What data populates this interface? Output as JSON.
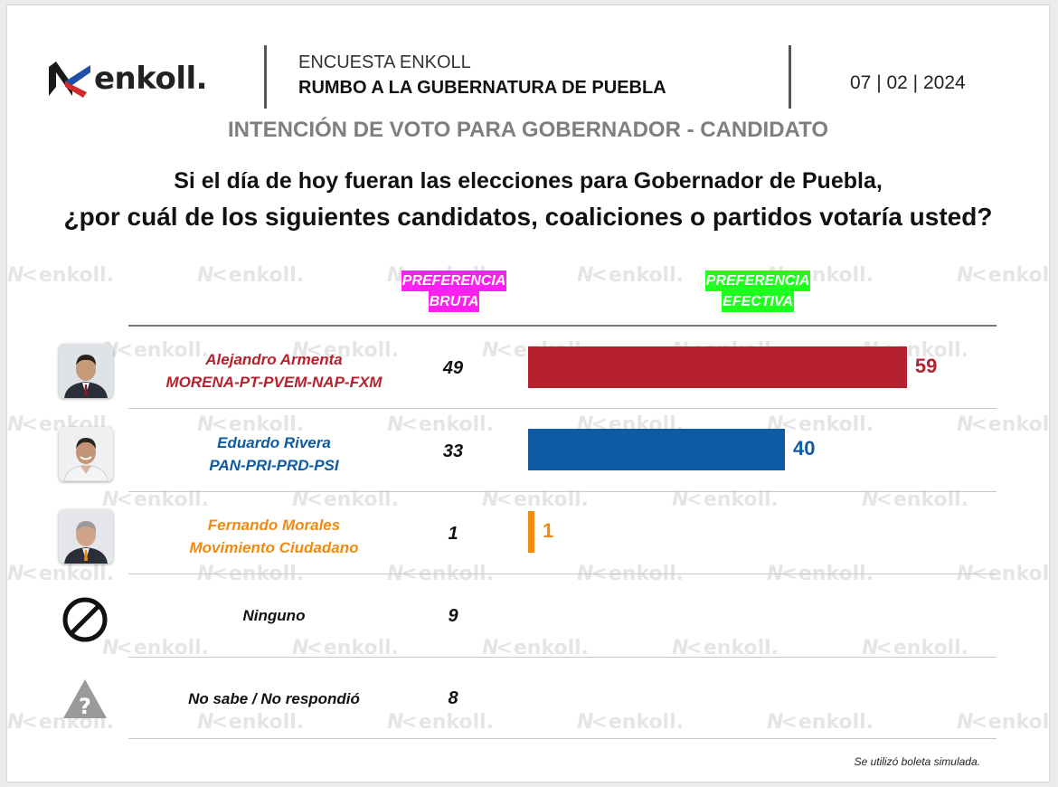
{
  "brand": {
    "logo_text": "enkoll.",
    "watermark_text": "enkoll."
  },
  "header": {
    "line1": "ENCUESTA ENKOLL",
    "line2": "RUMBO A LA GUBERNATURA DE PUEBLA",
    "date": "07 | 02 | 2024"
  },
  "subtitle": "INTENCIÓN DE VOTO PARA GOBERNADOR - CANDIDATO",
  "question": {
    "line1": "Si el día de hoy fueran las elecciones para Gobernador de Puebla,",
    "line2": "¿por cuál de los siguientes candidatos, coaliciones o partidos votaría usted?"
  },
  "columns": {
    "bruta": {
      "line1": "PREFERENCIA",
      "line2": "BRUTA",
      "highlight": "#ff1ff0"
    },
    "efectiva": {
      "line1": "PREFERENCIA",
      "line2": "EFECTIVA",
      "highlight": "#1dff1d"
    }
  },
  "chart_data": {
    "type": "bar",
    "orientation": "horizontal",
    "categories": [
      "Alejandro Armenta",
      "Eduardo Rivera",
      "Fernando Morales",
      "Ninguno",
      "No sabe / No respondió"
    ],
    "series": [
      {
        "name": "PREFERENCIA BRUTA",
        "values": [
          49,
          33,
          1,
          9,
          8
        ]
      },
      {
        "name": "PREFERENCIA EFECTIVA",
        "values": [
          59,
          40,
          1,
          null,
          null
        ]
      }
    ]
  },
  "rows": [
    {
      "name": "Alejandro Armenta",
      "party": "MORENA-PT-PVEM-NAP-FXM",
      "bruta": "49",
      "efectiva": "59",
      "color": "#b5222d",
      "icon": "candidate-photo"
    },
    {
      "name": "Eduardo Rivera",
      "party": "PAN-PRI-PRD-PSI",
      "bruta": "33",
      "efectiva": "40",
      "color": "#0f5ba3",
      "icon": "candidate-photo"
    },
    {
      "name": "Fernando Morales",
      "party": "Movimiento Ciudadano",
      "bruta": "1",
      "efectiva": "1",
      "color": "#f08a12",
      "icon": "candidate-photo"
    },
    {
      "name": "Ninguno",
      "party": "",
      "bruta": "9",
      "efectiva": "",
      "color": "#111111",
      "icon": "prohibited-icon"
    },
    {
      "name": "No sabe / No respondió",
      "party": "",
      "bruta": "8",
      "efectiva": "",
      "color": "#111111",
      "icon": "question-warning-icon"
    }
  ],
  "footnote": "Se utilizó boleta simulada."
}
